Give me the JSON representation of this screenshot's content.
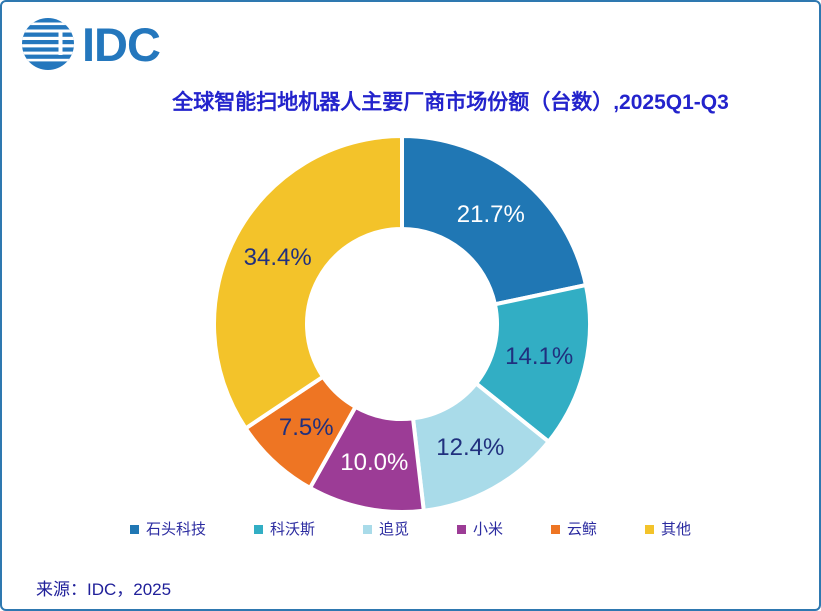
{
  "page": {
    "border_color": "#2E78B0",
    "background": "#FFFFFF"
  },
  "logo": {
    "text": "IDC",
    "color": "#2477BD"
  },
  "header": {
    "title": "全球智能扫地机器人主要厂商市场份额（台数）,2025Q1-Q3",
    "title_color": "#2323CC"
  },
  "chart_data": {
    "type": "pie",
    "donut": true,
    "title": "全球智能扫地机器人主要厂商市场份额（台数）,2025Q1-Q3",
    "start_angle_deg": 0,
    "direction": "clockwise",
    "categories": [
      "石头科技",
      "科沃斯",
      "追觅",
      "小米",
      "云鲸",
      "其他"
    ],
    "values": [
      21.7,
      14.1,
      12.4,
      10.0,
      7.5,
      34.4
    ],
    "labels": [
      "21.7%",
      "14.1%",
      "12.4%",
      "10.0%",
      "7.5%",
      "34.4%"
    ],
    "colors": [
      "#2077B4",
      "#32AEC4",
      "#A9DBE9",
      "#9C3C96",
      "#EE7523",
      "#F3C32A"
    ],
    "label_colors": [
      "#FFFFFF",
      "#20307E",
      "#20307E",
      "#FFFFFF",
      "#20307E",
      "#20307E"
    ],
    "inner_radius_ratio": 0.505,
    "legend_position": "bottom"
  },
  "legend": {
    "items": [
      {
        "label": "石头科技",
        "color": "#2077B4"
      },
      {
        "label": "科沃斯",
        "color": "#32AEC4"
      },
      {
        "label": "追觅",
        "color": "#A9DBE9"
      },
      {
        "label": "小米",
        "color": "#9C3C96"
      },
      {
        "label": "云鲸",
        "color": "#EE7523"
      },
      {
        "label": "其他",
        "color": "#F3C32A"
      }
    ]
  },
  "footer": {
    "source": "来源：IDC，2025"
  }
}
